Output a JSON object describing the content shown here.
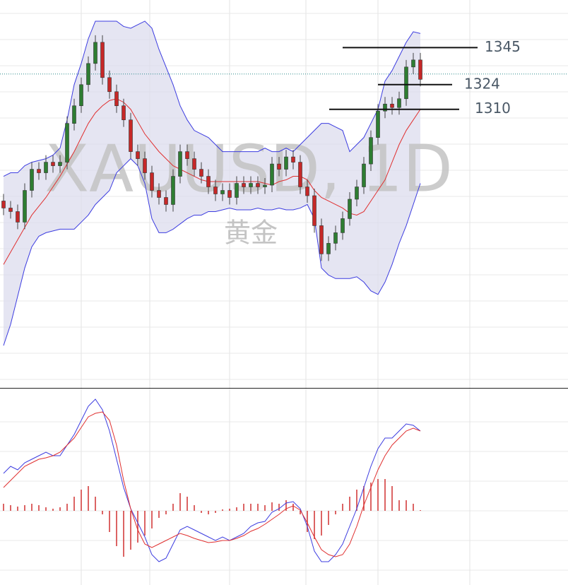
{
  "chart_data": [
    {
      "type": "candlestick",
      "title": "XAUUSD, 1D",
      "subtitle": "黄金",
      "ylim": [
        1152,
        1372
      ],
      "grid": true,
      "up_color": "#2e7d32",
      "down_color": "#c62828",
      "wick_color": "#444444",
      "open": [
        1258,
        1254,
        1252,
        1246,
        1264,
        1276,
        1274,
        1280,
        1278,
        1280,
        1302,
        1312,
        1324,
        1336,
        1348,
        1328,
        1320,
        1312,
        1304,
        1286,
        1282,
        1274,
        1264,
        1260,
        1256,
        1272,
        1286,
        1282,
        1276,
        1272,
        1266,
        1262,
        1264,
        1260,
        1268,
        1266,
        1268,
        1266,
        1267,
        1279,
        1276,
        1283,
        1280,
        1266,
        1261,
        1244,
        1228,
        1234,
        1240,
        1248,
        1259,
        1266,
        1279,
        1294,
        1309,
        1313,
        1311,
        1316,
        1334,
        1338
      ],
      "high": [
        1262,
        1258,
        1256,
        1268,
        1280,
        1280,
        1284,
        1284,
        1284,
        1306,
        1316,
        1328,
        1340,
        1352,
        1352,
        1332,
        1324,
        1316,
        1308,
        1290,
        1286,
        1278,
        1268,
        1264,
        1276,
        1290,
        1290,
        1286,
        1280,
        1276,
        1270,
        1268,
        1268,
        1272,
        1272,
        1272,
        1272,
        1271,
        1283,
        1283,
        1287,
        1287,
        1284,
        1270,
        1265,
        1248,
        1238,
        1244,
        1252,
        1263,
        1270,
        1283,
        1298,
        1313,
        1317,
        1317,
        1320,
        1338,
        1342,
        1342
      ],
      "low": [
        1250,
        1248,
        1242,
        1242,
        1260,
        1270,
        1270,
        1274,
        1274,
        1276,
        1298,
        1308,
        1320,
        1332,
        1324,
        1316,
        1308,
        1300,
        1282,
        1278,
        1270,
        1260,
        1256,
        1252,
        1252,
        1268,
        1278,
        1272,
        1268,
        1262,
        1258,
        1258,
        1256,
        1256,
        1262,
        1262,
        1262,
        1262,
        1263,
        1272,
        1272,
        1276,
        1262,
        1257,
        1240,
        1224,
        1224,
        1230,
        1236,
        1244,
        1255,
        1262,
        1275,
        1290,
        1305,
        1307,
        1307,
        1312,
        1330,
        1323
      ],
      "close": [
        1254,
        1252,
        1246,
        1264,
        1276,
        1274,
        1280,
        1278,
        1280,
        1302,
        1312,
        1324,
        1336,
        1348,
        1328,
        1320,
        1312,
        1304,
        1286,
        1282,
        1274,
        1264,
        1260,
        1256,
        1272,
        1286,
        1282,
        1276,
        1272,
        1266,
        1262,
        1264,
        1260,
        1268,
        1266,
        1268,
        1266,
        1267,
        1279,
        1276,
        1283,
        1280,
        1266,
        1261,
        1244,
        1228,
        1234,
        1240,
        1248,
        1259,
        1266,
        1279,
        1294,
        1309,
        1313,
        1311,
        1316,
        1334,
        1338,
        1327
      ],
      "band_fill": "#dcdcee",
      "bands": [
        {
          "color": "#3c3ce0",
          "values": [
            1272,
            1274,
            1274,
            1278,
            1280,
            1281,
            1282,
            1284,
            1288,
            1304,
            1324,
            1336,
            1350,
            1360,
            1360,
            1360,
            1360,
            1357,
            1356,
            1358,
            1360,
            1356,
            1344,
            1334,
            1324,
            1312,
            1304,
            1298,
            1296,
            1294,
            1290,
            1286,
            1286,
            1286,
            1286,
            1286,
            1286,
            1288,
            1286,
            1286,
            1288,
            1286,
            1290,
            1294,
            1298,
            1302,
            1302,
            1300,
            1298,
            1286,
            1290,
            1294,
            1302,
            1310,
            1326,
            1332,
            1340,
            1348,
            1354,
            1353
          ]
        },
        {
          "color": "#e03030",
          "values": [
            1222,
            1229,
            1236,
            1243,
            1250,
            1255,
            1260,
            1266,
            1272,
            1279,
            1286,
            1294,
            1302,
            1308,
            1312,
            1315,
            1316,
            1314,
            1310,
            1303,
            1296,
            1291,
            1286,
            1282,
            1278,
            1276,
            1274,
            1272,
            1270,
            1269,
            1269,
            1269,
            1269,
            1269,
            1269,
            1269,
            1269,
            1268,
            1267,
            1269,
            1270,
            1272,
            1272,
            1270,
            1264,
            1260,
            1258,
            1256,
            1254,
            1251,
            1250,
            1252,
            1258,
            1264,
            1270,
            1280,
            1290,
            1298,
            1304,
            1310
          ]
        },
        {
          "color": "#3c3ce0",
          "values": [
            1176,
            1188,
            1204,
            1220,
            1232,
            1238,
            1240,
            1241,
            1242,
            1242,
            1242,
            1246,
            1250,
            1256,
            1260,
            1264,
            1274,
            1278,
            1282,
            1278,
            1268,
            1248,
            1240,
            1240,
            1242,
            1245,
            1248,
            1250,
            1250,
            1252,
            1252,
            1253,
            1254,
            1253,
            1253,
            1253,
            1254,
            1253,
            1253,
            1254,
            1253,
            1253,
            1254,
            1256,
            1248,
            1220,
            1216,
            1214,
            1214,
            1214,
            1215,
            1212,
            1207,
            1205,
            1212,
            1222,
            1234,
            1244,
            1256,
            1268
          ]
        }
      ],
      "price_line": 1330,
      "price_line_color": "#2a8a8a",
      "levels": [
        1345,
        1324,
        1310
      ],
      "level_color": "#111111"
    },
    {
      "type": "macd",
      "ylim": [
        -10.5,
        17.3
      ],
      "grid": true,
      "series": [
        {
          "color": "#3c3ce0",
          "values": [
            5.3,
            6.3,
            5.8,
            6.8,
            7.3,
            7.8,
            8.3,
            7.8,
            7.8,
            9.3,
            10.8,
            12.8,
            14.8,
            15.8,
            14.3,
            11.3,
            7.3,
            3.3,
            0.3,
            -1.7,
            -3.7,
            -6.2,
            -7.2,
            -6.7,
            -4.7,
            -2.7,
            -2.2,
            -2.7,
            -3.2,
            -3.7,
            -4.2,
            -3.7,
            -4.2,
            -3.7,
            -3.2,
            -2.2,
            -1.7,
            -1.5,
            -0.2,
            0.3,
            1.1,
            1.3,
            0.3,
            -2.2,
            -5.7,
            -7.2,
            -7.2,
            -6.2,
            -4.7,
            -2.2,
            0.3,
            3.3,
            6.3,
            8.8,
            10.3,
            10.3,
            11.3,
            12.3,
            12.1,
            11.3
          ]
        },
        {
          "color": "#e03030",
          "values": [
            3.3,
            4.3,
            5.3,
            6.3,
            6.8,
            7.3,
            7.5,
            7.8,
            8.3,
            9.3,
            10.3,
            11.8,
            13.3,
            13.8,
            14.0,
            12.8,
            9.3,
            4.3,
            0.3,
            -2.7,
            -4.7,
            -5.2,
            -4.7,
            -4.2,
            -3.7,
            -3.2,
            -3.5,
            -3.9,
            -4.2,
            -4.5,
            -4.4,
            -4.2,
            -4.2,
            -3.9,
            -3.5,
            -2.9,
            -2.5,
            -1.9,
            -1.2,
            -0.5,
            0.3,
            0.7,
            0.1,
            -1.7,
            -3.7,
            -5.5,
            -6.2,
            -6.5,
            -6.2,
            -4.7,
            -2.2,
            0.8,
            3.3,
            5.8,
            7.8,
            9.3,
            10.3,
            11.3,
            11.7,
            11.3
          ]
        }
      ],
      "histogram": {
        "color": "#d03030",
        "values": [
          1.0,
          0.8,
          0.6,
          0.8,
          1.0,
          0.8,
          0.5,
          0.3,
          0.5,
          1.0,
          2.0,
          3.0,
          3.5,
          2.0,
          -0.5,
          -3.0,
          -5.0,
          -6.5,
          -5.5,
          -4.5,
          -3.5,
          -2.5,
          -1.0,
          -0.5,
          1.0,
          2.5,
          2.0,
          0.8,
          -0.3,
          -0.5,
          -0.3,
          0.2,
          0.3,
          0.5,
          1.0,
          1.0,
          1.0,
          0.8,
          1.2,
          1.0,
          1.5,
          1.0,
          -0.5,
          -3.0,
          -4.0,
          -3.5,
          -2.0,
          -0.5,
          1.0,
          2.0,
          3.0,
          3.5,
          4.0,
          4.5,
          4.5,
          3.5,
          1.5,
          1.5,
          1.0,
          0.1
        ]
      }
    }
  ]
}
